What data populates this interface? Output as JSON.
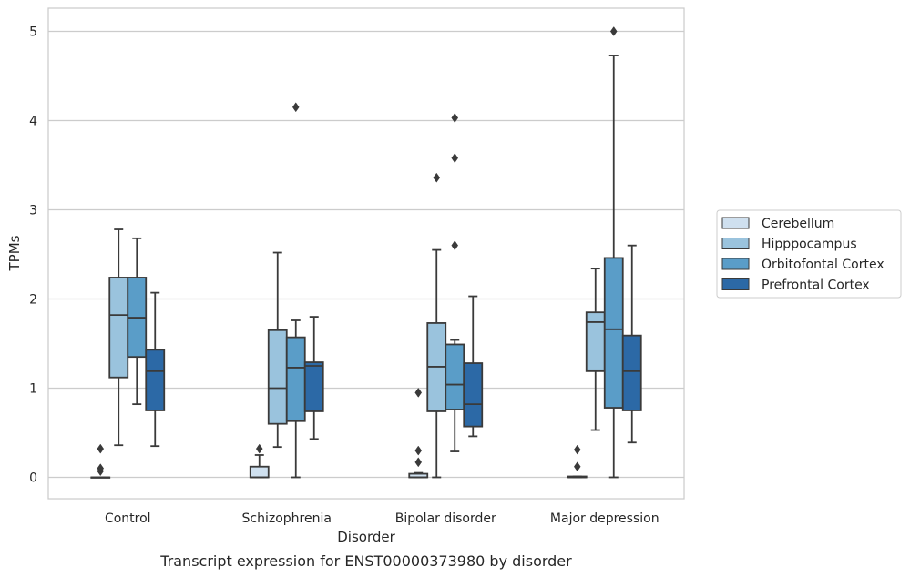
{
  "chart_data": {
    "type": "boxplot",
    "caption": "Transcript expression for ENST00000373980 by disorder",
    "xlabel": "Disorder",
    "ylabel": "TPMs",
    "ylim": [
      -0.24,
      5.26
    ],
    "yticks": [
      0,
      1,
      2,
      3,
      4,
      5
    ],
    "grid": "horizontal",
    "legend_position": "right",
    "categories": [
      "Control",
      "Schizophrenia",
      "Bipolar disorder",
      "Major depression"
    ],
    "series": [
      {
        "name": "Cerebellum",
        "color": "#cfe0ef",
        "boxes": [
          {
            "whislo": 0,
            "q1": 0,
            "med": 0,
            "q3": 0,
            "whishi": 0,
            "fliers": [
              0.32,
              0.1,
              0.07
            ]
          },
          {
            "whislo": 0,
            "q1": 0,
            "med": 0,
            "q3": 0.12,
            "whishi": 0.25,
            "fliers": [
              0.32
            ]
          },
          {
            "whislo": 0,
            "q1": 0,
            "med": 0,
            "q3": 0.04,
            "whishi": 0.05,
            "fliers": [
              0.3,
              0.17,
              0.95
            ]
          },
          {
            "whislo": 0,
            "q1": 0,
            "med": 0,
            "q3": 0.01,
            "whishi": 0.01,
            "fliers": [
              0.31,
              0.12
            ]
          }
        ]
      },
      {
        "name": "Hipppocampus",
        "color": "#9ac3dd",
        "boxes": [
          {
            "whislo": 0.36,
            "q1": 1.12,
            "med": 1.82,
            "q3": 2.24,
            "whishi": 2.78,
            "fliers": []
          },
          {
            "whislo": 0.34,
            "q1": 0.6,
            "med": 1.0,
            "q3": 1.65,
            "whishi": 2.52,
            "fliers": []
          },
          {
            "whislo": 0,
            "q1": 0.74,
            "med": 1.24,
            "q3": 1.73,
            "whishi": 2.55,
            "fliers": [
              3.36
            ]
          },
          {
            "whislo": 0.53,
            "q1": 1.19,
            "med": 1.74,
            "q3": 1.85,
            "whishi": 2.34,
            "fliers": []
          }
        ]
      },
      {
        "name": "Orbitofontal Cortex",
        "color": "#5a9dc8",
        "boxes": [
          {
            "whislo": 0.82,
            "q1": 1.35,
            "med": 1.79,
            "q3": 2.24,
            "whishi": 2.68,
            "fliers": []
          },
          {
            "whislo": 0,
            "q1": 0.63,
            "med": 1.23,
            "q3": 1.57,
            "whishi": 1.76,
            "fliers": [
              4.15
            ]
          },
          {
            "whislo": 0.29,
            "q1": 0.76,
            "med": 1.04,
            "q3": 1.49,
            "whishi": 1.54,
            "fliers": [
              4.03,
              3.58,
              2.6
            ]
          },
          {
            "whislo": 0,
            "q1": 0.78,
            "med": 1.66,
            "q3": 2.46,
            "whishi": 4.73,
            "fliers": [
              5.0
            ]
          }
        ]
      },
      {
        "name": "Prefrontal Cortex",
        "color": "#2c69a6",
        "boxes": [
          {
            "whislo": 0.35,
            "q1": 0.75,
            "med": 1.19,
            "q3": 1.43,
            "whishi": 2.07,
            "fliers": []
          },
          {
            "whislo": 0.43,
            "q1": 0.74,
            "med": 1.25,
            "q3": 1.29,
            "whishi": 1.8,
            "fliers": []
          },
          {
            "whislo": 0.46,
            "q1": 0.57,
            "med": 0.82,
            "q3": 1.28,
            "whishi": 2.03,
            "fliers": []
          },
          {
            "whislo": 0.39,
            "q1": 0.75,
            "med": 1.19,
            "q3": 1.59,
            "whishi": 2.6,
            "fliers": []
          }
        ]
      }
    ]
  }
}
